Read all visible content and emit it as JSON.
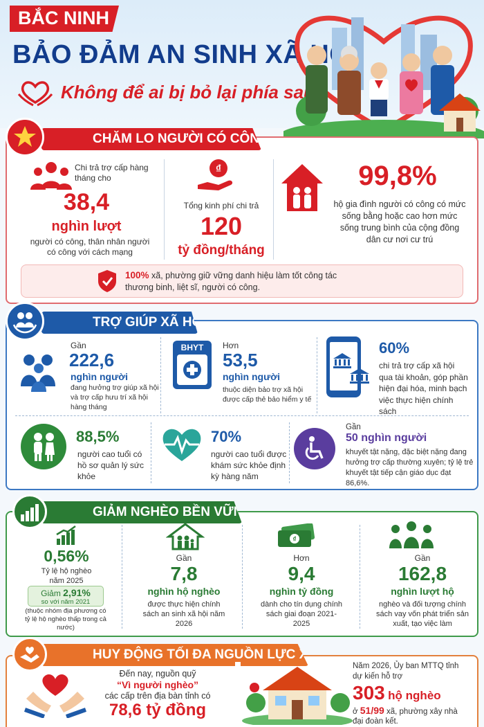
{
  "header": {
    "province": "BẮC NINH",
    "title": "BẢO ĐẢM AN SINH XÃ HỘI",
    "subtitle": "Không để ai bị bỏ lại phía sau"
  },
  "section1": {
    "title": "CHĂM LO NGƯỜI CÓ CÔNG",
    "col1": {
      "lead": "Chi trả trợ cấp hàng tháng cho",
      "value": "38,4",
      "unit": "nghìn lượt",
      "desc": "người có công, thân nhân người có công với cách mạng"
    },
    "col2": {
      "lead": "Tổng kinh phí chi trả",
      "value": "120",
      "unit": "tỷ đồng/tháng"
    },
    "col3": {
      "value": "99,8%",
      "desc": "hộ gia đình người có công có mức sống bằng hoặc cao hơn mức sống trung bình của cộng đồng dân cư nơi cư trú"
    },
    "note_value": "100%",
    "note_text": " xã, phường  giữ vững danh hiệu làm tốt công tác thương binh, liệt sĩ, người có công."
  },
  "section2": {
    "title": "TRỢ GIÚP XÃ HỘI",
    "bhyt_label": "BHYT",
    "item1": {
      "prefix": "Gần",
      "value": "222,6",
      "unit": "nghìn người",
      "desc": "đang hưởng trợ giúp xã hội và trợ cấp hưu trí xã hội hàng tháng"
    },
    "item2": {
      "prefix": "Hơn",
      "value": "53,5",
      "unit": "nghìn người",
      "desc": "thuộc diện bảo trợ xã hội được cấp thẻ bảo hiểm y tế"
    },
    "item3": {
      "value": "60%",
      "desc": "chi trả trợ cấp xã hội qua tài khoản, góp phần hiện đại hóa, minh bạch việc thực hiện chính sách"
    },
    "item4": {
      "value": "88,5%",
      "desc": "người cao tuổi có hồ sơ quản lý sức khỏe"
    },
    "item5": {
      "value": "70%",
      "desc": "người cao tuổi được khám sức khỏe định kỳ hàng năm"
    },
    "item6": {
      "prefix": "Gần",
      "value": "50 nghìn người",
      "desc": "khuyết tật nặng, đặc biệt nặng đang hưởng trợ cấp thường xuyên; tỷ lệ trẻ khuyết tật tiếp cận giáo dục đạt 86,6%."
    }
  },
  "section3": {
    "title": "GIẢM NGHÈO BỀN VỮNG",
    "item1": {
      "value": "0,56%",
      "desc": "Tỷ lệ hộ nghèo năm 2025",
      "badge_lead": "Giảm ",
      "badge_value": "2,91%",
      "badge_sub": "so với năm 2021",
      "note": "(thuộc nhóm địa phương có tỷ lệ hộ nghèo thấp trong cả nước)"
    },
    "item2": {
      "prefix": "Gần",
      "value": "7,8",
      "unit": "nghìn hộ nghèo",
      "desc": "được thực hiện chính sách an sinh xã hội năm 2026"
    },
    "item3": {
      "prefix": "Hơn",
      "value": "9,4",
      "unit": "nghìn tỷ đồng",
      "desc": "dành cho tín dụng chính sách giai đoạn 2021-2025"
    },
    "item4": {
      "prefix": "Gần",
      "value": "162,8",
      "unit": "nghìn lượt hộ",
      "desc": "nghèo và đối tượng chính sách vay vốn phát triển sản xuất, tạo việc làm"
    }
  },
  "section4": {
    "title": "HUY ĐỘNG TỐI ĐA NGUỒN LỰC XÃ HỘI",
    "fund_lead": "Đến nay, nguồn quỹ",
    "fund_name": "“Vì người nghèo”",
    "fund_text": "các cấp trên địa bàn tỉnh có",
    "fund_value": "78,6 tỷ đồng",
    "house_lead": "Năm 2026, Ủy ban MTTQ tỉnh dự kiến hỗ trợ",
    "house_value": "303",
    "house_unit": "hộ nghèo",
    "house_prefix": "ở ",
    "house_ratio": "51/99",
    "house_text": " xã, phường xây nhà đại đoàn kết."
  },
  "colors": {
    "red": "#d81f26",
    "navy": "#123c8c",
    "blue": "#1e5aa8",
    "green": "#2a7b34"
  }
}
